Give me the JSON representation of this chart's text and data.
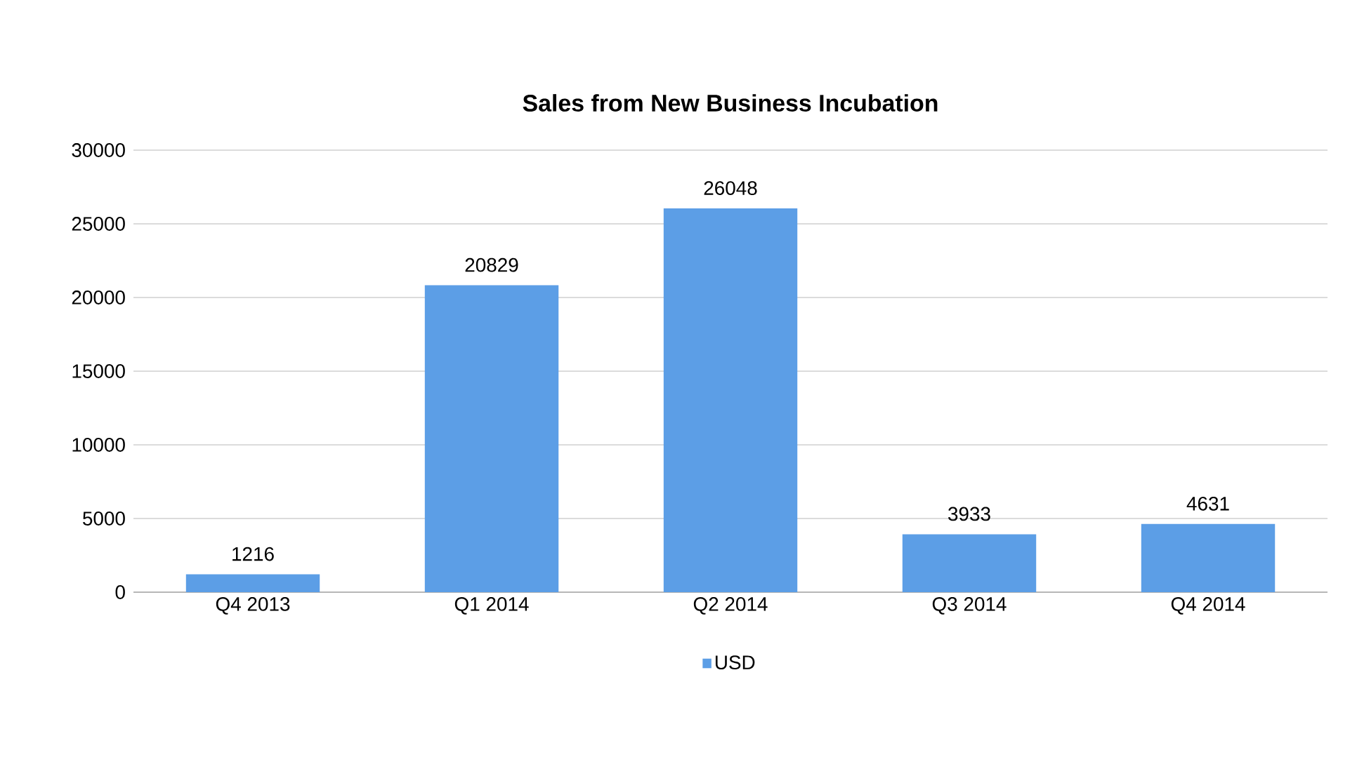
{
  "chart_data": {
    "type": "bar",
    "title": "Sales from New Business Incubation",
    "categories": [
      "Q4 2013",
      "Q1 2014",
      "Q2 2014",
      "Q3 2014",
      "Q4 2014"
    ],
    "series": [
      {
        "name": "USD",
        "color": "#5c9ee6",
        "values": [
          1216,
          20829,
          26048,
          3933,
          4631
        ]
      }
    ],
    "ylim": [
      0,
      30000
    ],
    "yticks": [
      0,
      5000,
      10000,
      15000,
      20000,
      25000,
      30000
    ],
    "grid": "y",
    "legend": "bottom",
    "data_labels": true
  }
}
